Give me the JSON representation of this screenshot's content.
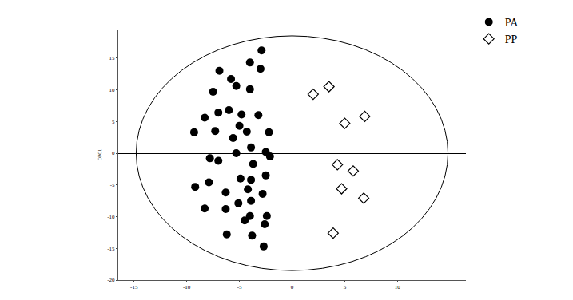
{
  "chart_data": {
    "type": "scatter",
    "y_label": "OPC1",
    "xlim": [
      -16.5,
      16.5
    ],
    "xticks": [
      -15,
      -10,
      -5,
      0,
      5,
      10
    ],
    "ylim": [
      -20,
      19.5
    ],
    "yticks": [
      -20,
      -15,
      -10,
      -5,
      0,
      5,
      10,
      15
    ],
    "grid": false,
    "legend": "top right",
    "ellipse": {
      "x": [
        -14.8,
        14.8
      ],
      "y": [
        -18.5,
        18.5
      ]
    },
    "series": [
      {
        "name": "PA",
        "color": "#000000",
        "marker": "circle",
        "x": [
          -2.9,
          -4,
          -3,
          -6.9,
          -5.8,
          -5.3,
          -7.5,
          -4,
          -6,
          -7,
          -8.3,
          -4.8,
          -3.2,
          -9.3,
          -7.3,
          -5,
          -4.3,
          -5.6,
          -2.2,
          -3.9,
          -5.3,
          -2.5,
          -2.1,
          -7.8,
          -7,
          -3.7,
          -4.9,
          -2.5,
          -3.9,
          -9.2,
          -7.9,
          -6.3,
          -4.2,
          -2.8,
          -5.1,
          -3.9,
          -8.3,
          -6.3,
          -4,
          -2.4,
          -4.5,
          -2.6,
          -6.2,
          -3.8,
          -2.7
        ],
        "values": [
          16.2,
          14.3,
          13.3,
          13,
          11.7,
          10.6,
          9.7,
          10.1,
          6.8,
          6.4,
          5.6,
          6.1,
          6,
          3.3,
          3.5,
          4.3,
          3.4,
          2.4,
          3.3,
          0.9,
          0,
          0.2,
          -0.5,
          -0.8,
          -1.2,
          -1.7,
          -4,
          -3.5,
          -4.2,
          -5.3,
          -4.6,
          -6.2,
          -5.7,
          -6.4,
          -7.9,
          -7.5,
          -8.7,
          -8.8,
          -9.9,
          -9.9,
          -10.6,
          -11.2,
          -12.8,
          -13,
          -14.7
        ]
      },
      {
        "name": "PP",
        "color": "#000000",
        "marker": "diamond-open",
        "x": [
          2,
          3.5,
          5,
          6.9,
          4.3,
          5.8,
          4.7,
          6.8,
          3.9
        ],
        "values": [
          9.3,
          10.5,
          4.7,
          5.8,
          -1.8,
          -2.8,
          -5.6,
          -7.1,
          -12.6
        ]
      }
    ]
  }
}
